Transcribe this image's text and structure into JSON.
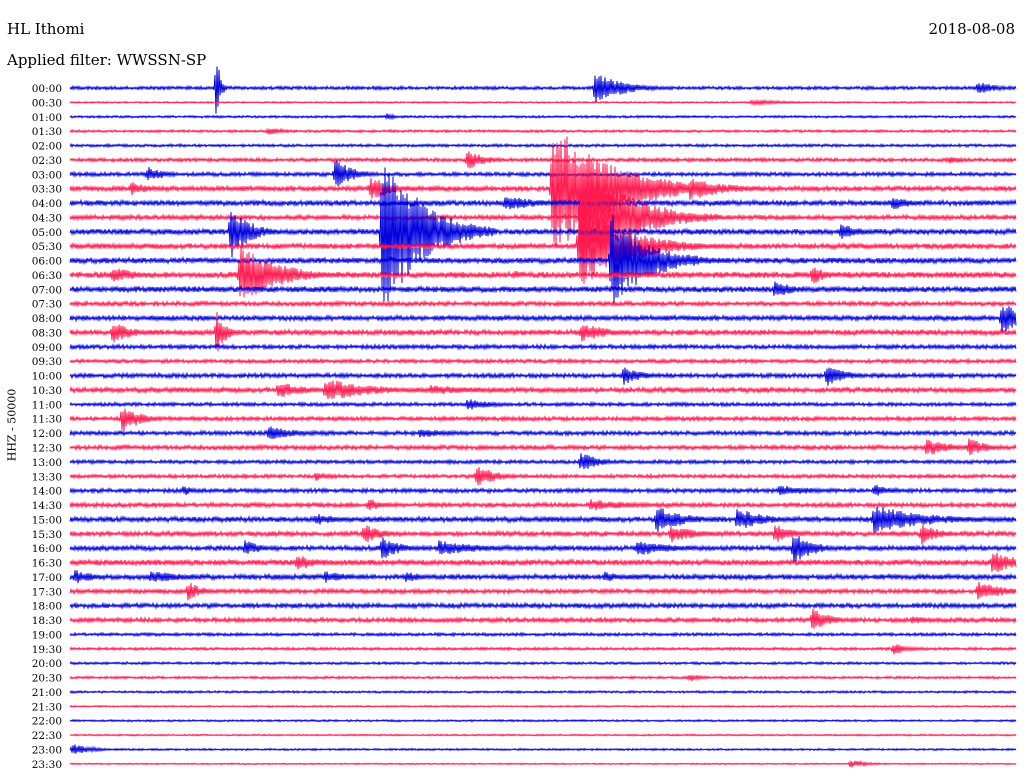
{
  "header": {
    "station": "HL Ithomi",
    "filter": "Applied filter: WWSSN-SP",
    "date": "2018-08-08",
    "scale_label": "HHZ - 50000"
  },
  "colors": {
    "line_a": "#0000dd",
    "line_b": "#ff1a50"
  },
  "chart_data": {
    "type": "line",
    "title": "HL Ithomi",
    "subtitle": "Applied filter: WWSSN-SP",
    "ylabel": "HHZ - 50000",
    "rows": [
      "00:00",
      "00:30",
      "01:00",
      "01:30",
      "02:00",
      "02:30",
      "03:00",
      "03:30",
      "04:00",
      "04:30",
      "05:00",
      "05:30",
      "06:00",
      "06:30",
      "07:00",
      "07:30",
      "08:00",
      "08:30",
      "09:00",
      "09:30",
      "10:00",
      "10:30",
      "11:00",
      "11:30",
      "12:00",
      "12:30",
      "13:00",
      "13:30",
      "14:00",
      "14:30",
      "15:00",
      "15:30",
      "16:00",
      "16:30",
      "17:00",
      "17:30",
      "18:00",
      "18:30",
      "19:00",
      "19:30",
      "20:00",
      "20:30",
      "21:00",
      "21:30",
      "22:00",
      "22:30",
      "23:00",
      "23:30"
    ],
    "row_colors": [
      "blue",
      "red"
    ],
    "noise_level": [
      1.2,
      0.6,
      0.8,
      0.9,
      1.0,
      1.3,
      1.4,
      1.8,
      1.9,
      1.7,
      2.0,
      1.9,
      2.0,
      2.2,
      2.1,
      1.6,
      1.8,
      1.9,
      1.5,
      1.4,
      1.6,
      1.8,
      1.3,
      1.5,
      1.5,
      1.6,
      1.3,
      1.3,
      1.5,
      1.6,
      1.9,
      1.7,
      1.8,
      2.0,
      1.9,
      1.6,
      1.7,
      1.6,
      1.1,
      1.0,
      0.9,
      0.9,
      0.8,
      0.6,
      0.7,
      0.6,
      0.7,
      0.5
    ],
    "events": [
      {
        "row": 0,
        "x": 0.155,
        "amp": 36,
        "len": 0.004
      },
      {
        "row": 0,
        "x": 0.555,
        "amp": 16,
        "len": 0.03
      },
      {
        "row": 0,
        "x": 0.96,
        "amp": 7,
        "len": 0.02
      },
      {
        "row": 1,
        "x": 0.72,
        "amp": 3,
        "len": 0.04
      },
      {
        "row": 2,
        "x": 0.335,
        "amp": 4,
        "len": 0.01
      },
      {
        "row": 3,
        "x": 0.21,
        "amp": 4,
        "len": 0.02
      },
      {
        "row": 5,
        "x": 0.42,
        "amp": 10,
        "len": 0.02
      },
      {
        "row": 5,
        "x": 0.93,
        "amp": 5,
        "len": 0.015
      },
      {
        "row": 6,
        "x": 0.082,
        "amp": 8,
        "len": 0.02
      },
      {
        "row": 6,
        "x": 0.28,
        "amp": 16,
        "len": 0.02
      },
      {
        "row": 7,
        "x": 0.065,
        "amp": 7,
        "len": 0.02
      },
      {
        "row": 7,
        "x": 0.318,
        "amp": 12,
        "len": 0.025
      },
      {
        "row": 7,
        "x": 0.51,
        "amp": 70,
        "len": 0.06
      },
      {
        "row": 7,
        "x": 0.655,
        "amp": 12,
        "len": 0.04
      },
      {
        "row": 8,
        "x": 0.46,
        "amp": 8,
        "len": 0.04
      },
      {
        "row": 8,
        "x": 0.87,
        "amp": 8,
        "len": 0.02
      },
      {
        "row": 9,
        "x": 0.54,
        "amp": 60,
        "len": 0.05
      },
      {
        "row": 10,
        "x": 0.17,
        "amp": 28,
        "len": 0.02
      },
      {
        "row": 10,
        "x": 0.33,
        "amp": 88,
        "len": 0.04
      },
      {
        "row": 10,
        "x": 0.815,
        "amp": 9,
        "len": 0.02
      },
      {
        "row": 11,
        "x": 0.538,
        "amp": 44,
        "len": 0.05
      },
      {
        "row": 12,
        "x": 0.572,
        "amp": 48,
        "len": 0.04
      },
      {
        "row": 13,
        "x": 0.045,
        "amp": 8,
        "len": 0.03
      },
      {
        "row": 13,
        "x": 0.18,
        "amp": 30,
        "len": 0.04
      },
      {
        "row": 13,
        "x": 0.47,
        "amp": 5,
        "len": 0.01
      },
      {
        "row": 13,
        "x": 0.785,
        "amp": 11,
        "len": 0.015
      },
      {
        "row": 14,
        "x": 0.745,
        "amp": 10,
        "len": 0.02
      },
      {
        "row": 16,
        "x": 0.985,
        "amp": 16,
        "len": 0.03
      },
      {
        "row": 17,
        "x": 0.045,
        "amp": 12,
        "len": 0.02
      },
      {
        "row": 17,
        "x": 0.155,
        "amp": 22,
        "len": 0.01
      },
      {
        "row": 17,
        "x": 0.54,
        "amp": 10,
        "len": 0.03
      },
      {
        "row": 20,
        "x": 0.585,
        "amp": 10,
        "len": 0.02
      },
      {
        "row": 20,
        "x": 0.8,
        "amp": 12,
        "len": 0.02
      },
      {
        "row": 21,
        "x": 0.22,
        "amp": 9,
        "len": 0.03
      },
      {
        "row": 21,
        "x": 0.27,
        "amp": 12,
        "len": 0.05
      },
      {
        "row": 21,
        "x": 0.38,
        "amp": 5,
        "len": 0.06
      },
      {
        "row": 22,
        "x": 0.42,
        "amp": 6,
        "len": 0.03
      },
      {
        "row": 23,
        "x": 0.055,
        "amp": 14,
        "len": 0.02
      },
      {
        "row": 24,
        "x": 0.21,
        "amp": 8,
        "len": 0.03
      },
      {
        "row": 24,
        "x": 0.37,
        "amp": 5,
        "len": 0.04
      },
      {
        "row": 25,
        "x": 0.905,
        "amp": 9,
        "len": 0.03
      },
      {
        "row": 25,
        "x": 0.95,
        "amp": 10,
        "len": 0.02
      },
      {
        "row": 26,
        "x": 0.54,
        "amp": 10,
        "len": 0.02
      },
      {
        "row": 27,
        "x": 0.43,
        "amp": 12,
        "len": 0.02
      },
      {
        "row": 27,
        "x": 0.26,
        "amp": 5,
        "len": 0.02
      },
      {
        "row": 28,
        "x": 0.12,
        "amp": 6,
        "len": 0.01
      },
      {
        "row": 28,
        "x": 0.75,
        "amp": 6,
        "len": 0.04
      },
      {
        "row": 28,
        "x": 0.85,
        "amp": 7,
        "len": 0.02
      },
      {
        "row": 29,
        "x": 0.315,
        "amp": 7,
        "len": 0.02
      },
      {
        "row": 29,
        "x": 0.55,
        "amp": 6,
        "len": 0.05
      },
      {
        "row": 30,
        "x": 0.26,
        "amp": 6,
        "len": 0.03
      },
      {
        "row": 30,
        "x": 0.62,
        "amp": 14,
        "len": 0.03
      },
      {
        "row": 30,
        "x": 0.705,
        "amp": 12,
        "len": 0.03
      },
      {
        "row": 30,
        "x": 0.85,
        "amp": 14,
        "len": 0.06
      },
      {
        "row": 31,
        "x": 0.31,
        "amp": 11,
        "len": 0.02
      },
      {
        "row": 31,
        "x": 0.635,
        "amp": 9,
        "len": 0.03
      },
      {
        "row": 31,
        "x": 0.745,
        "amp": 10,
        "len": 0.02
      },
      {
        "row": 31,
        "x": 0.9,
        "amp": 11,
        "len": 0.02
      },
      {
        "row": 32,
        "x": 0.185,
        "amp": 8,
        "len": 0.02
      },
      {
        "row": 32,
        "x": 0.33,
        "amp": 12,
        "len": 0.02
      },
      {
        "row": 32,
        "x": 0.39,
        "amp": 8,
        "len": 0.05
      },
      {
        "row": 32,
        "x": 0.6,
        "amp": 8,
        "len": 0.04
      },
      {
        "row": 32,
        "x": 0.765,
        "amp": 18,
        "len": 0.02
      },
      {
        "row": 33,
        "x": 0.24,
        "amp": 8,
        "len": 0.03
      },
      {
        "row": 33,
        "x": 0.975,
        "amp": 12,
        "len": 0.03
      },
      {
        "row": 34,
        "x": 0.005,
        "amp": 8,
        "len": 0.02
      },
      {
        "row": 34,
        "x": 0.085,
        "amp": 6,
        "len": 0.05
      },
      {
        "row": 34,
        "x": 0.27,
        "amp": 6,
        "len": 0.03
      },
      {
        "row": 34,
        "x": 0.355,
        "amp": 6,
        "len": 0.02
      },
      {
        "row": 34,
        "x": 0.565,
        "amp": 6,
        "len": 0.02
      },
      {
        "row": 35,
        "x": 0.125,
        "amp": 10,
        "len": 0.015
      },
      {
        "row": 35,
        "x": 0.96,
        "amp": 10,
        "len": 0.03
      },
      {
        "row": 37,
        "x": 0.785,
        "amp": 12,
        "len": 0.02
      },
      {
        "row": 37,
        "x": 0.89,
        "amp": 5,
        "len": 0.02
      },
      {
        "row": 39,
        "x": 0.87,
        "amp": 6,
        "len": 0.02
      },
      {
        "row": 41,
        "x": 0.655,
        "amp": 5,
        "len": 0.01
      },
      {
        "row": 46,
        "x": 0.003,
        "amp": 6,
        "len": 0.02
      },
      {
        "row": 47,
        "x": 0.825,
        "amp": 4,
        "len": 0.02
      }
    ]
  }
}
